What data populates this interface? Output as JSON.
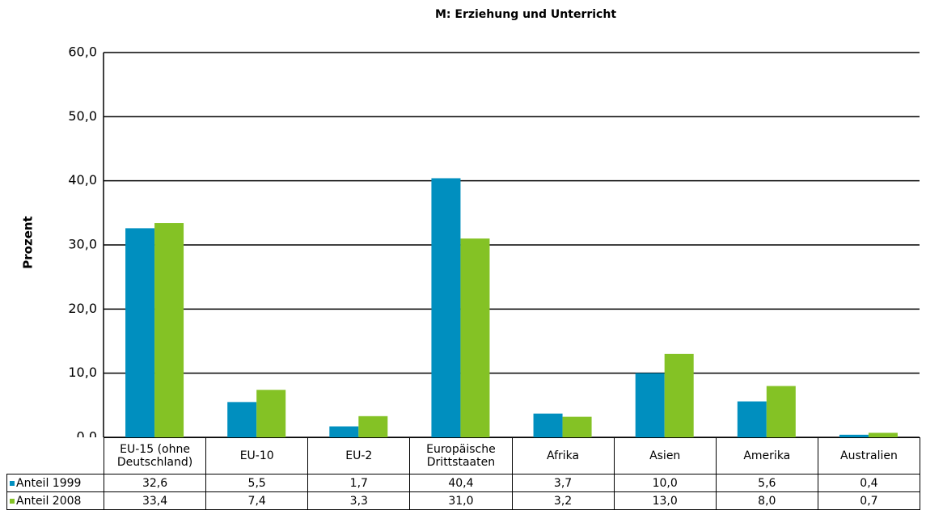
{
  "chart_data": {
    "type": "bar",
    "title": "M: Erziehung und Unterricht",
    "y_label": "Prozent",
    "categories": [
      "EU-15 (ohne Deutschland)",
      "EU-10",
      "EU-2",
      "Europäische Drittstaaten",
      "Afrika",
      "Asien",
      "Amerika",
      "Australien"
    ],
    "series": [
      {
        "name": "Anteil 1999",
        "color": "#008fbf",
        "values": [
          32.6,
          5.5,
          1.7,
          40.4,
          3.7,
          10.0,
          5.6,
          0.4
        ],
        "value_labels": [
          "32,6",
          "5,5",
          "1,7",
          "40,4",
          "3,7",
          "10,0",
          "5,6",
          "0,4"
        ]
      },
      {
        "name": "Anteil 2008",
        "color": "#84c225",
        "values": [
          33.4,
          7.4,
          3.3,
          31.0,
          3.2,
          13.0,
          8.0,
          0.7
        ],
        "value_labels": [
          "33,4",
          "7,4",
          "3,3",
          "31,0",
          "3,2",
          "13,0",
          "8,0",
          "0,7"
        ]
      }
    ],
    "ylim": [
      0,
      60
    ],
    "yticks": [
      {
        "value": 0,
        "label": "0,0"
      },
      {
        "value": 10,
        "label": "10,0"
      },
      {
        "value": 20,
        "label": "20,0"
      },
      {
        "value": 30,
        "label": "30,0"
      },
      {
        "value": 40,
        "label": "40,0"
      },
      {
        "value": 50,
        "label": "50,0"
      },
      {
        "value": 60,
        "label": "60,0"
      }
    ],
    "grid": true
  }
}
